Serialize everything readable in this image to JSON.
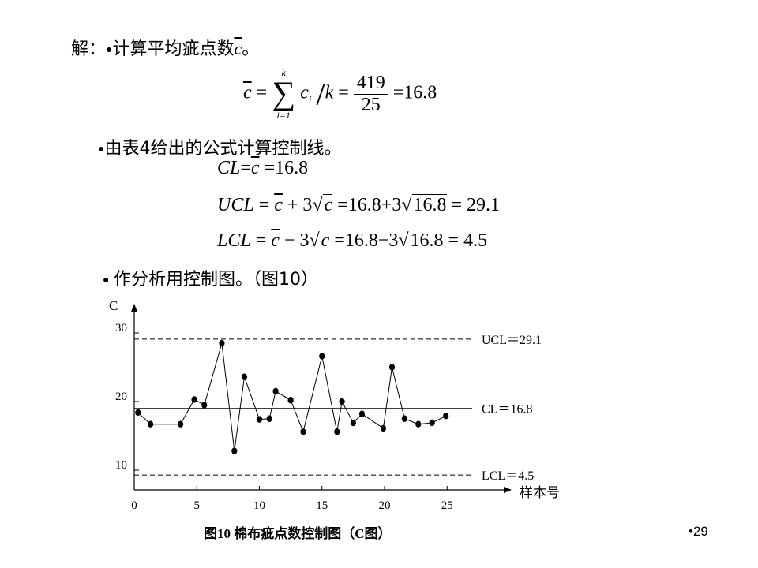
{
  "steps": {
    "s1_prefix": "解：",
    "s1_text": "计算平均疵点数",
    "s1_symbol": "c",
    "s1_end": "。",
    "s2_text": "由表4给出的公式计算控制线。",
    "s3_text": "作分析用控制图。（图10）"
  },
  "formula1": {
    "lhs": "c",
    "eq": "=",
    "sum_top": "k",
    "sum_sym": "∑",
    "sum_bottom": "i=1",
    "term": "c",
    "term_sub": "i",
    "slash": "/",
    "k": "k",
    "num": "419",
    "den": "25",
    "result": "=16.8"
  },
  "formulas": {
    "cl": {
      "lhs": "CL",
      "eq1": "=",
      "c": "c",
      "rest": " =16.8"
    },
    "ucl": {
      "lhs": "UCL",
      "eq1": " = ",
      "c": "c",
      "mid": " + 3",
      "sqrt_c": "c",
      "mid2": " =16.8+3",
      "sqrt_val": "16.8",
      "rest": " = 29.1"
    },
    "lcl": {
      "lhs": "LCL",
      "eq1": " = ",
      "c": "c",
      "mid": " − 3",
      "sqrt_c": "c",
      "mid2": " =16.8−3",
      "sqrt_val": "16.8",
      "rest": " = 4.5"
    }
  },
  "caption": "图10  棉布疵点数控制图（C图）",
  "page_number": "•29",
  "chart_data": {
    "type": "line",
    "xlabel": "样本号",
    "ylabel": "C",
    "xlim": [
      0,
      25
    ],
    "ylim": [
      10,
      30
    ],
    "x_ticks": [
      0,
      5,
      10,
      15,
      20,
      25
    ],
    "y_ticks": [
      10,
      20,
      30
    ],
    "grid": false,
    "control_lines": [
      {
        "name": "UCL",
        "label": "UCL＝29.1",
        "value": 29.1,
        "style": "dashed"
      },
      {
        "name": "CL",
        "label": "CL＝16.8",
        "value": 16.8,
        "style": "solid"
      },
      {
        "name": "LCL",
        "label": "LCL＝4.5",
        "value": 4.5,
        "style": "dashed"
      }
    ],
    "points": [
      {
        "x": 0.3,
        "y": 18.4
      },
      {
        "x": 1.3,
        "y": 16.7
      },
      {
        "x": 3.7,
        "y": 16.7
      },
      {
        "x": 4.8,
        "y": 20.3
      },
      {
        "x": 5.6,
        "y": 19.5
      },
      {
        "x": 7.0,
        "y": 28.5
      },
      {
        "x": 8.0,
        "y": 12.8
      },
      {
        "x": 8.8,
        "y": 23.6
      },
      {
        "x": 10.0,
        "y": 17.4
      },
      {
        "x": 10.8,
        "y": 17.5
      },
      {
        "x": 11.3,
        "y": 21.5
      },
      {
        "x": 12.5,
        "y": 20.2
      },
      {
        "x": 13.5,
        "y": 15.6
      },
      {
        "x": 15.0,
        "y": 26.6
      },
      {
        "x": 16.2,
        "y": 15.6
      },
      {
        "x": 16.6,
        "y": 20.0
      },
      {
        "x": 17.5,
        "y": 16.9
      },
      {
        "x": 18.2,
        "y": 18.2
      },
      {
        "x": 19.9,
        "y": 16.1
      },
      {
        "x": 20.6,
        "y": 25.0
      },
      {
        "x": 21.6,
        "y": 17.5
      },
      {
        "x": 22.7,
        "y": 16.7
      },
      {
        "x": 23.8,
        "y": 16.9
      },
      {
        "x": 24.9,
        "y": 17.9
      }
    ]
  }
}
